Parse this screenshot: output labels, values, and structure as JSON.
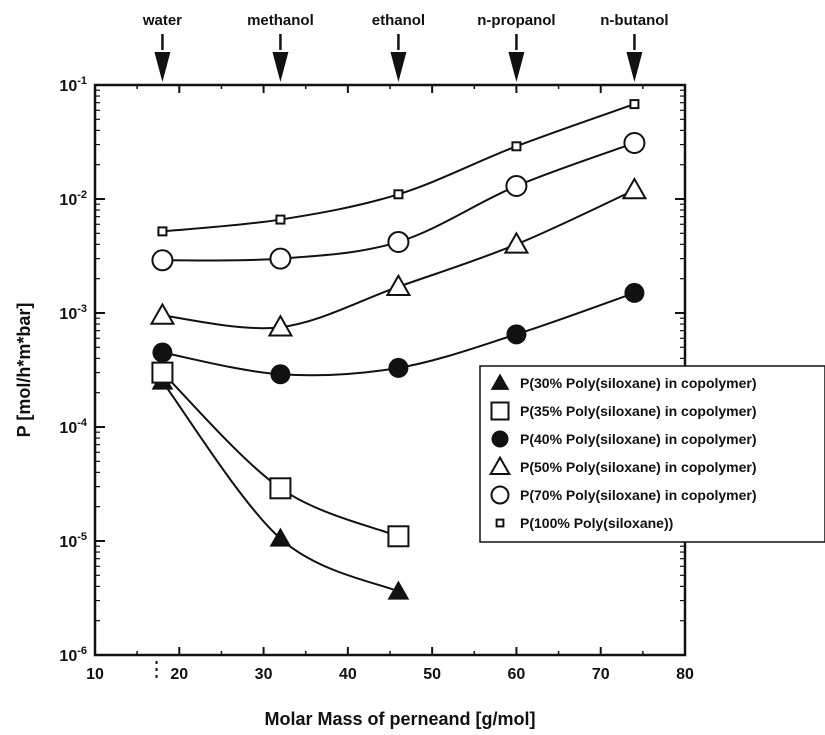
{
  "chart_data": {
    "type": "line",
    "xlabel": "Molar Mass of perneand [g/mol]",
    "ylabel": "P [mol/h*m*bar]",
    "xlim": [
      10,
      80
    ],
    "ylim_log10": [
      -6,
      -1
    ],
    "y_scale": "log",
    "x_ticks": [
      "10",
      "20",
      "30",
      "40",
      "50",
      "60",
      "70",
      "80"
    ],
    "y_ticks": [
      {
        "base": "10",
        "exp": "-6"
      },
      {
        "base": "10",
        "exp": "-5"
      },
      {
        "base": "10",
        "exp": "-4"
      },
      {
        "base": "10",
        "exp": "-3"
      },
      {
        "base": "10",
        "exp": "-2"
      },
      {
        "base": "10",
        "exp": "-1"
      }
    ],
    "top_markers": [
      {
        "label": "water",
        "x": 18
      },
      {
        "label": "methanol",
        "x": 32
      },
      {
        "label": "ethanol",
        "x": 46
      },
      {
        "label": "n-propanol",
        "x": 60
      },
      {
        "label": "n-butanol",
        "x": 74
      }
    ],
    "legend_position": "right",
    "series": [
      {
        "name": "P(30% Poly(siloxane) in copolymer)",
        "marker": "triangle-filled",
        "x": [
          18,
          32,
          46
        ],
        "y": [
          0.00025,
          1.05e-05,
          3.6e-06
        ]
      },
      {
        "name": "P(35% Poly(siloxane) in copolymer)",
        "marker": "square-open",
        "x": [
          18,
          32,
          46
        ],
        "y": [
          0.0003,
          2.9e-05,
          1.1e-05
        ]
      },
      {
        "name": "P(40% Poly(siloxane) in copolymer)",
        "marker": "circle-filled",
        "x": [
          18,
          32,
          46,
          60,
          74
        ],
        "y": [
          0.00045,
          0.00029,
          0.00033,
          0.00065,
          0.0015
        ]
      },
      {
        "name": "P(50% Poly(siloxane) in copolymer)",
        "marker": "triangle-open",
        "x": [
          18,
          32,
          46,
          60,
          74
        ],
        "y": [
          0.00095,
          0.00075,
          0.0017,
          0.004,
          0.012
        ]
      },
      {
        "name": "P(70% Poly(siloxane) in copolymer)",
        "marker": "circle-open",
        "x": [
          18,
          32,
          46,
          60,
          74
        ],
        "y": [
          0.0029,
          0.003,
          0.0042,
          0.013,
          0.031
        ]
      },
      {
        "name": "P(100% Poly(siloxane))",
        "marker": "small-square",
        "x": [
          18,
          32,
          46,
          60,
          74
        ],
        "y": [
          0.0052,
          0.0066,
          0.011,
          0.029,
          0.068
        ]
      }
    ]
  }
}
